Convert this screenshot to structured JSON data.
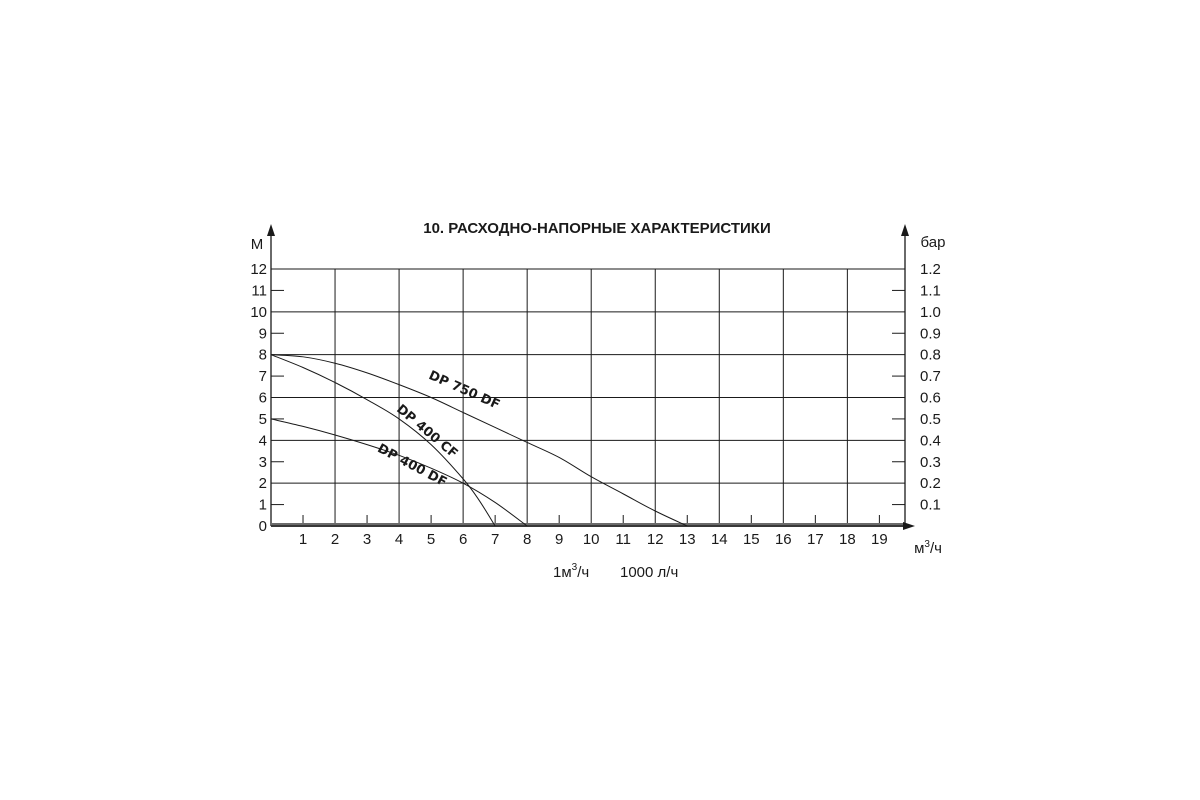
{
  "chart_data": {
    "type": "line",
    "title": "10. РАСХОДНО-НАПОРНЫЕ ХАРАКТЕРИСТИКИ",
    "ylabel_left": "М",
    "ylabel_right": "бар",
    "xlabel_unit": "м",
    "xlabel_unit_sup": "3",
    "xlabel_unit_tail": "/ч",
    "conversion_note": {
      "left_main": "1м",
      "left_sup": "3",
      "left_tail": "/ч",
      "right": "1000 л/ч"
    },
    "xlim": [
      0,
      19.8
    ],
    "ylim": [
      0,
      12
    ],
    "x_ticks": [
      "1",
      "2",
      "3",
      "4",
      "5",
      "6",
      "7",
      "8",
      "9",
      "10",
      "11",
      "12",
      "13",
      "14",
      "15",
      "16",
      "17",
      "18",
      "19"
    ],
    "y_ticks_left": [
      "0",
      "1",
      "2",
      "3",
      "4",
      "5",
      "6",
      "7",
      "8",
      "9",
      "10",
      "11",
      "12"
    ],
    "y_ticks_right": [
      "0.1",
      "0.2",
      "0.3",
      "0.4",
      "0.5",
      "0.6",
      "0.7",
      "0.8",
      "0.9",
      "1.0",
      "1.1",
      "1.2"
    ],
    "grid": true,
    "series": [
      {
        "name": "DP 750 DF",
        "points": [
          [
            0,
            8
          ],
          [
            1,
            7.9
          ],
          [
            2,
            7.6
          ],
          [
            3,
            7.15
          ],
          [
            4,
            6.6
          ],
          [
            5,
            6
          ],
          [
            6,
            5.3
          ],
          [
            7,
            4.6
          ],
          [
            8,
            3.9
          ],
          [
            9,
            3.2
          ],
          [
            10,
            2.3
          ],
          [
            11,
            1.5
          ],
          [
            12,
            0.7
          ],
          [
            13,
            0
          ]
        ]
      },
      {
        "name": "DP 400 CF",
        "points": [
          [
            0,
            8
          ],
          [
            1,
            7.4
          ],
          [
            2,
            6.7
          ],
          [
            3,
            5.9
          ],
          [
            4,
            5
          ],
          [
            5,
            3.8
          ],
          [
            6,
            2.2
          ],
          [
            6.5,
            1.2
          ],
          [
            7,
            0
          ]
        ]
      },
      {
        "name": "DP 400 DF",
        "points": [
          [
            0,
            5
          ],
          [
            1,
            4.65
          ],
          [
            2,
            4.25
          ],
          [
            3,
            3.8
          ],
          [
            4,
            3.3
          ],
          [
            5,
            2.7
          ],
          [
            6,
            2
          ],
          [
            7,
            1.1
          ],
          [
            8,
            0
          ]
        ]
      }
    ]
  }
}
